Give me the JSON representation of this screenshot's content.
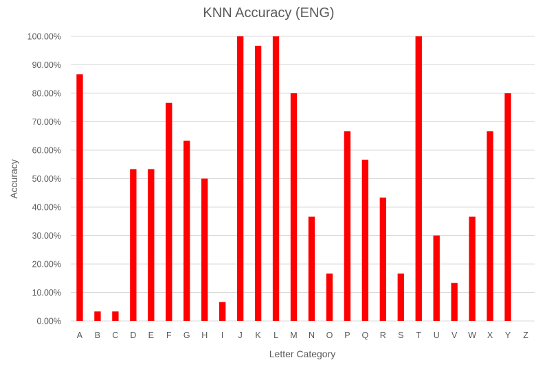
{
  "chart_data": {
    "type": "bar",
    "title": "KNN Accuracy (ENG)",
    "xlabel": "Letter Category",
    "ylabel": "Accuracy",
    "ylim": [
      0,
      100
    ],
    "ytick_step": 10,
    "ytick_format": "percent_2dp",
    "grid": true,
    "legend": "none",
    "bar_color": "#ff0000",
    "categories": [
      "A",
      "B",
      "C",
      "D",
      "E",
      "F",
      "G",
      "H",
      "I",
      "J",
      "K",
      "L",
      "M",
      "N",
      "O",
      "P",
      "Q",
      "R",
      "S",
      "T",
      "U",
      "V",
      "W",
      "X",
      "Y",
      "Z"
    ],
    "values": [
      86.67,
      3.33,
      3.33,
      53.33,
      53.33,
      76.67,
      63.33,
      50.0,
      6.67,
      100.0,
      96.67,
      100.0,
      80.0,
      36.67,
      16.67,
      66.67,
      56.67,
      43.33,
      16.67,
      100.0,
      30.0,
      13.33,
      36.67,
      66.67,
      80.0,
      0.0
    ]
  }
}
